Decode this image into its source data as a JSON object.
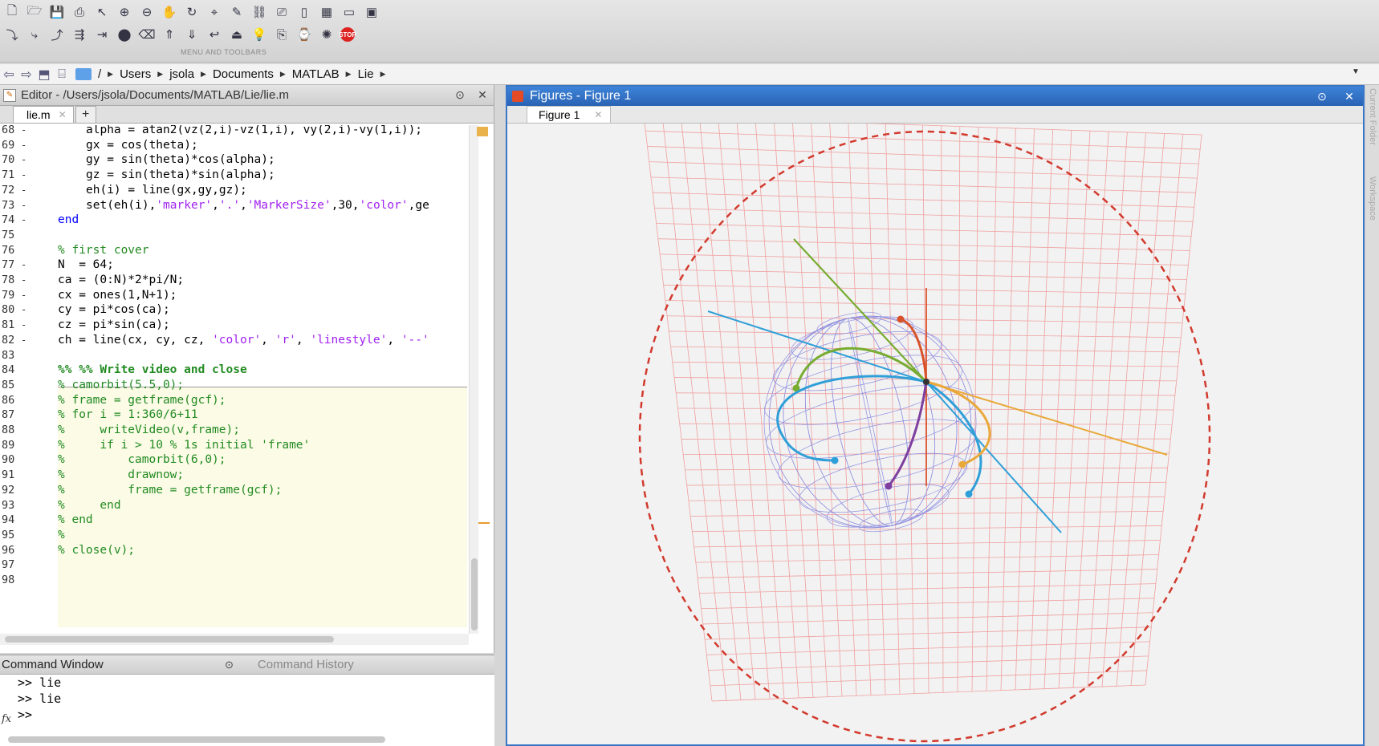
{
  "toolbar": {
    "caption": "MENU AND TOOLBARS",
    "row1_icons": [
      "new-file-icon",
      "open-folder-icon",
      "save-icon",
      "print-icon",
      "pointer-icon",
      "zoom-in-icon",
      "zoom-out-icon",
      "pan-icon",
      "rotate-icon",
      "data-cursor-icon",
      "brush-icon",
      "link-icon",
      "camera-icon",
      "layout-icon",
      "grid-icon",
      "toggle-icon",
      "window-icon"
    ],
    "row2_icons": [
      "step-icon",
      "step-in-icon",
      "step-out-icon",
      "run-section-icon",
      "advance-icon",
      "breakpoint-icon",
      "clear-icon",
      "stack-up-icon",
      "stack-down-icon",
      "return-icon",
      "exit-debug-icon",
      "bulb-icon",
      "publish-icon",
      "profile-icon",
      "wizard-icon"
    ],
    "stop_label": "STOP"
  },
  "pathbar": {
    "crumbs": [
      "/",
      "Users",
      "jsola",
      "Documents",
      "MATLAB",
      "Lie"
    ]
  },
  "editor": {
    "title": "Editor - /Users/jsola/Documents/MATLAB/Lie/lie.m",
    "tab_label": "lie.m",
    "tab_add": "+",
    "lines": [
      {
        "n": "68",
        "dash": "-",
        "indent": 2,
        "parts": [
          {
            "t": "alpha = atan2(vz(2,i)-vz(1,i), vy(2,i)-vy(1,i));",
            "c": ""
          }
        ]
      },
      {
        "n": "69",
        "dash": "-",
        "indent": 2,
        "parts": [
          {
            "t": "gx = cos(theta);",
            "c": ""
          }
        ]
      },
      {
        "n": "70",
        "dash": "-",
        "indent": 2,
        "parts": [
          {
            "t": "gy = sin(theta)*cos(alpha);",
            "c": ""
          }
        ]
      },
      {
        "n": "71",
        "dash": "-",
        "indent": 2,
        "parts": [
          {
            "t": "gz = sin(theta)*sin(alpha);",
            "c": ""
          }
        ]
      },
      {
        "n": "72",
        "dash": "-",
        "indent": 2,
        "parts": [
          {
            "t": "eh(i) = line(gx,gy,gz);",
            "c": ""
          }
        ]
      },
      {
        "n": "73",
        "dash": "-",
        "indent": 2,
        "parts": [
          {
            "t": "set(eh(i),",
            "c": ""
          },
          {
            "t": "'marker'",
            "c": "str"
          },
          {
            "t": ",",
            "c": ""
          },
          {
            "t": "'.'",
            "c": "str"
          },
          {
            "t": ",",
            "c": ""
          },
          {
            "t": "'MarkerSize'",
            "c": "str"
          },
          {
            "t": ",30,",
            "c": ""
          },
          {
            "t": "'color'",
            "c": "str"
          },
          {
            "t": ",ge",
            "c": ""
          }
        ]
      },
      {
        "n": "74",
        "dash": "-",
        "indent": 0,
        "parts": [
          {
            "t": "end",
            "c": "kw"
          }
        ]
      },
      {
        "n": "75",
        "dash": "",
        "indent": 0,
        "parts": []
      },
      {
        "n": "76",
        "dash": "",
        "indent": 0,
        "parts": [
          {
            "t": "% first cover",
            "c": "cm"
          }
        ]
      },
      {
        "n": "77",
        "dash": "-",
        "indent": 0,
        "parts": [
          {
            "t": "N  = 64;",
            "c": ""
          }
        ]
      },
      {
        "n": "78",
        "dash": "-",
        "indent": 0,
        "parts": [
          {
            "t": "ca = (0:N)*2*pi/N;",
            "c": ""
          }
        ]
      },
      {
        "n": "79",
        "dash": "-",
        "indent": 0,
        "parts": [
          {
            "t": "cx = ones(1,N+1);",
            "c": ""
          }
        ]
      },
      {
        "n": "80",
        "dash": "-",
        "indent": 0,
        "parts": [
          {
            "t": "cy = pi*cos(ca);",
            "c": ""
          }
        ]
      },
      {
        "n": "81",
        "dash": "-",
        "indent": 0,
        "parts": [
          {
            "t": "cz = pi*sin(ca);",
            "c": ""
          }
        ]
      },
      {
        "n": "82",
        "dash": "-",
        "indent": 0,
        "parts": [
          {
            "t": "ch = line(cx, cy, cz, ",
            "c": ""
          },
          {
            "t": "'color'",
            "c": "str"
          },
          {
            "t": ", ",
            "c": ""
          },
          {
            "t": "'r'",
            "c": "str"
          },
          {
            "t": ", ",
            "c": ""
          },
          {
            "t": "'linestyle'",
            "c": "str"
          },
          {
            "t": ", ",
            "c": ""
          },
          {
            "t": "'--'",
            "c": "str"
          }
        ]
      },
      {
        "n": "83",
        "dash": "",
        "indent": 0,
        "parts": []
      },
      {
        "n": "84",
        "dash": "",
        "indent": 0,
        "parts": [
          {
            "t": "%% %% Write video and close",
            "c": "cmb"
          }
        ]
      },
      {
        "n": "85",
        "dash": "",
        "indent": 0,
        "parts": [
          {
            "t": "% camorbit(5.5,0);",
            "c": "cm"
          }
        ]
      },
      {
        "n": "86",
        "dash": "",
        "indent": 0,
        "parts": [
          {
            "t": "% frame = getframe(gcf);",
            "c": "cm"
          }
        ]
      },
      {
        "n": "87",
        "dash": "",
        "indent": 0,
        "parts": [
          {
            "t": "% for i = 1:360/6+11",
            "c": "cm"
          }
        ]
      },
      {
        "n": "88",
        "dash": "",
        "indent": 0,
        "parts": [
          {
            "t": "%     writeVideo(v,frame);",
            "c": "cm"
          }
        ]
      },
      {
        "n": "89",
        "dash": "",
        "indent": 0,
        "parts": [
          {
            "t": "%     if i > 10 % 1s initial 'frame'",
            "c": "cm"
          }
        ]
      },
      {
        "n": "90",
        "dash": "",
        "indent": 0,
        "parts": [
          {
            "t": "%         camorbit(6,0);",
            "c": "cm"
          }
        ]
      },
      {
        "n": "91",
        "dash": "",
        "indent": 0,
        "parts": [
          {
            "t": "%         drawnow;",
            "c": "cm"
          }
        ]
      },
      {
        "n": "92",
        "dash": "",
        "indent": 0,
        "parts": [
          {
            "t": "%         frame = getframe(gcf);",
            "c": "cm"
          }
        ]
      },
      {
        "n": "93",
        "dash": "",
        "indent": 0,
        "parts": [
          {
            "t": "%     end",
            "c": "cm"
          }
        ]
      },
      {
        "n": "94",
        "dash": "",
        "indent": 0,
        "parts": [
          {
            "t": "% end",
            "c": "cm"
          }
        ]
      },
      {
        "n": "95",
        "dash": "",
        "indent": 0,
        "parts": [
          {
            "t": "%",
            "c": "cm"
          }
        ]
      },
      {
        "n": "96",
        "dash": "",
        "indent": 0,
        "parts": [
          {
            "t": "% close(v);",
            "c": "cm"
          }
        ]
      },
      {
        "n": "97",
        "dash": "",
        "indent": 0,
        "parts": []
      },
      {
        "n": "98",
        "dash": "",
        "indent": 0,
        "parts": []
      }
    ]
  },
  "command": {
    "tab1": "Command Window",
    "tab2": "Command History",
    "lines": [
      ">> lie",
      ">> lie",
      ">>"
    ],
    "fx": "fx"
  },
  "figure": {
    "title": "Figures - Figure 1",
    "tab_label": "Figure 1"
  },
  "side": {
    "label1": "Current Folder",
    "label2": "Workspace"
  },
  "colors": {
    "editor_keyword": "#0000ff",
    "editor_string": "#a020f0",
    "editor_comment": "#228b22",
    "cell_highlight": "#fbfbe6",
    "figure_titlebar": "#2f6cc0",
    "dashed_circle": "#d23a2e",
    "grid": "#f0a0a0",
    "sphere_mesh": "#8f8fe0",
    "curve_green": "#77ac30",
    "curve_orange": "#e9a93a",
    "curve_blue": "#2f9fd8",
    "curve_purple": "#7e3fa0",
    "curve_red": "#d9532a"
  }
}
